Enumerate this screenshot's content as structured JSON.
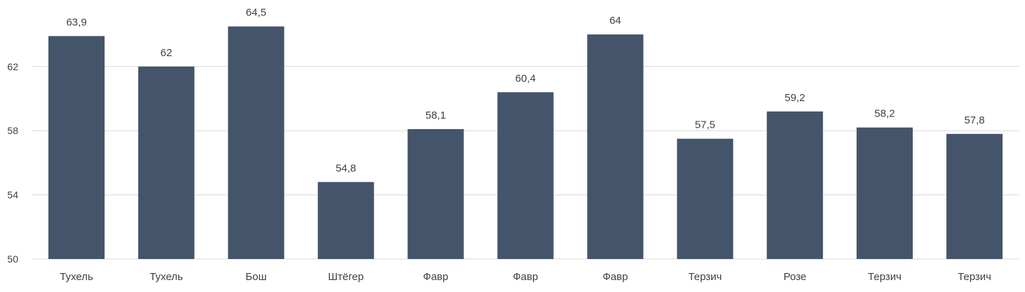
{
  "chart_data": {
    "type": "bar",
    "categories": [
      "Тухель",
      "Тухель",
      "Бош",
      "Штёгер",
      "Фавр",
      "Фавр",
      "Фавр",
      "Терзич",
      "Розе",
      "Терзич",
      "Терзич"
    ],
    "values": [
      63.9,
      62,
      64.5,
      54.8,
      58.1,
      60.4,
      64,
      57.5,
      59.2,
      58.2,
      57.8
    ],
    "data_labels": [
      "63,9",
      "62",
      "64,5",
      "54,8",
      "58,1",
      "60,4",
      "64",
      "57,5",
      "59,2",
      "58,2",
      "57,8"
    ],
    "title": "",
    "xlabel": "",
    "ylabel": "",
    "ylim": [
      50,
      66
    ],
    "yticks": [
      50,
      54,
      58,
      62
    ],
    "ytick_labels": [
      "50",
      "54",
      "58",
      "62"
    ],
    "grid": true,
    "legend": "none",
    "bar_color": "#44546a",
    "grid_color": "#d9d9d9",
    "text_color": "#404040"
  }
}
